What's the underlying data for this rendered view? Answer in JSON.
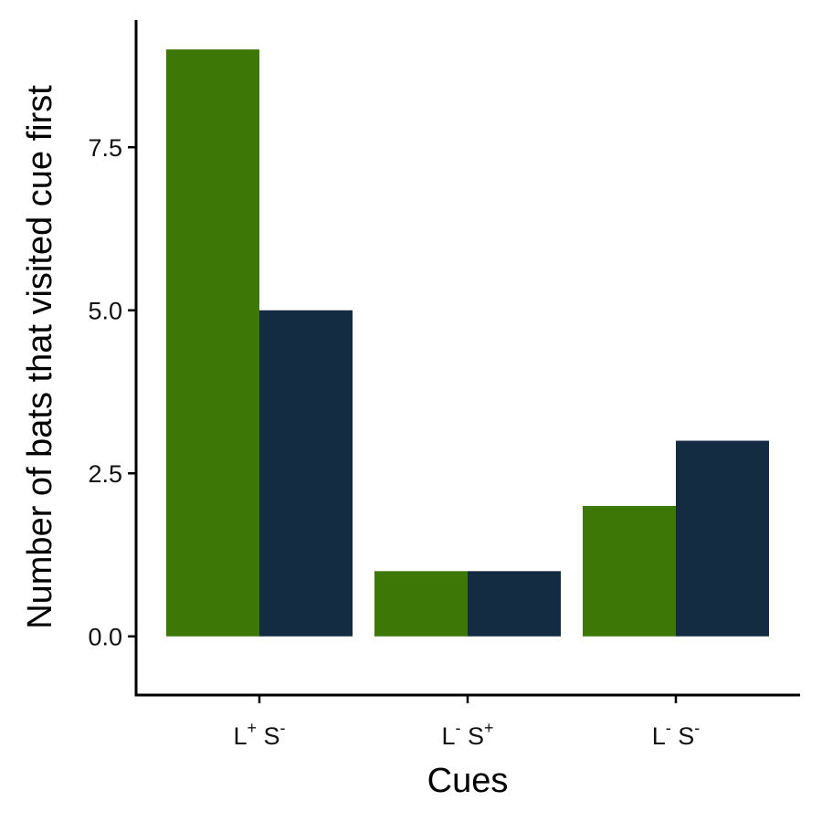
{
  "chart_data": {
    "type": "bar",
    "categories": [
      {
        "base1": "L",
        "sup1": "+",
        "base2": "S",
        "sup2": "-"
      },
      {
        "base1": "L",
        "sup1": "-",
        "base2": "S",
        "sup2": "+"
      },
      {
        "base1": "L",
        "sup1": "-",
        "base2": "S",
        "sup2": "-"
      }
    ],
    "series": [
      {
        "values": [
          9,
          1,
          2
        ],
        "color": "#3d7806"
      },
      {
        "values": [
          5,
          1,
          3
        ],
        "color": "#142c42"
      }
    ],
    "xlabel": "Cues",
    "ylabel": "Number of bats that visited cue first",
    "ylim": [
      -0.9,
      9.45
    ],
    "yticks": [
      0.0,
      2.5,
      5.0,
      7.5
    ],
    "ytick_labels": [
      "0.0",
      "2.5",
      "5.0",
      "7.5"
    ],
    "grid": false,
    "legend": "none"
  }
}
